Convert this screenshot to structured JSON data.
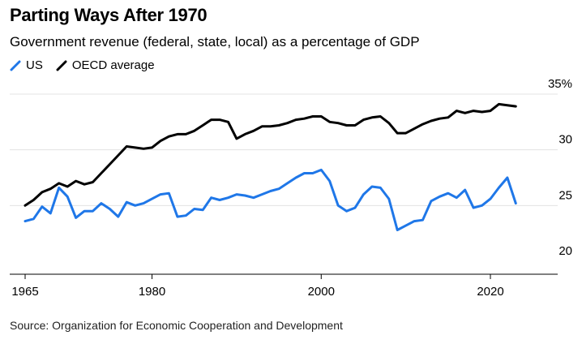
{
  "title": "Parting Ways After 1970",
  "subtitle": "Government revenue (federal, state, local) as a percentage of GDP",
  "source": "Source: Organization for Economic Cooperation and Development",
  "chart_data": {
    "type": "line",
    "title": "Parting Ways After 1970",
    "subtitle": "Government revenue (federal, state, local) as a percentage of GDP",
    "xlabel": "",
    "ylabel": "",
    "xlim": [
      1965,
      2023
    ],
    "ylim": [
      20,
      35
    ],
    "x_ticks": [
      1965,
      1980,
      2000,
      2020
    ],
    "y_ticks": [
      20,
      25,
      30,
      35
    ],
    "y_tick_labels": [
      "20",
      "25",
      "30",
      "35%"
    ],
    "grid": true,
    "legend_position": "top-left",
    "x": [
      1965,
      1966,
      1967,
      1968,
      1969,
      1970,
      1971,
      1972,
      1973,
      1974,
      1975,
      1976,
      1977,
      1978,
      1979,
      1980,
      1981,
      1982,
      1983,
      1984,
      1985,
      1986,
      1987,
      1988,
      1989,
      1990,
      1991,
      1992,
      1993,
      1994,
      1995,
      1996,
      1997,
      1998,
      1999,
      2000,
      2001,
      2002,
      2003,
      2004,
      2005,
      2006,
      2007,
      2008,
      2009,
      2010,
      2011,
      2012,
      2013,
      2014,
      2015,
      2016,
      2017,
      2018,
      2019,
      2020,
      2021,
      2022,
      2023
    ],
    "series": [
      {
        "name": "US",
        "color": "#1f77e8",
        "values": [
          23.6,
          23.8,
          24.9,
          24.3,
          26.6,
          25.8,
          23.9,
          24.5,
          24.5,
          25.2,
          24.7,
          24.0,
          25.3,
          25.0,
          25.2,
          25.6,
          26.0,
          26.1,
          24.0,
          24.1,
          24.7,
          24.6,
          25.7,
          25.5,
          25.7,
          26.0,
          25.9,
          25.7,
          26.0,
          26.3,
          26.5,
          27.0,
          27.5,
          27.9,
          27.9,
          28.2,
          27.2,
          25.0,
          24.5,
          24.8,
          26.0,
          26.7,
          26.6,
          25.6,
          22.8,
          23.2,
          23.6,
          23.7,
          25.4,
          25.8,
          26.1,
          25.7,
          26.4,
          24.8,
          25.0,
          25.6,
          26.6,
          27.5,
          25.2
        ]
      },
      {
        "name": "OECD average",
        "color": "#000000",
        "values": [
          25.0,
          25.5,
          26.2,
          26.5,
          27.0,
          26.7,
          27.2,
          26.9,
          27.1,
          27.9,
          28.7,
          29.5,
          30.3,
          30.2,
          30.1,
          30.2,
          30.8,
          31.2,
          31.4,
          31.4,
          31.7,
          32.2,
          32.7,
          32.7,
          32.5,
          31.0,
          31.4,
          31.7,
          32.1,
          32.1,
          32.2,
          32.4,
          32.7,
          32.8,
          33.0,
          33.0,
          32.5,
          32.4,
          32.2,
          32.2,
          32.7,
          32.9,
          33.0,
          32.4,
          31.5,
          31.5,
          31.9,
          32.3,
          32.6,
          32.8,
          32.9,
          33.5,
          33.3,
          33.5,
          33.4,
          33.5,
          34.1,
          34.0,
          33.9
        ]
      }
    ]
  }
}
